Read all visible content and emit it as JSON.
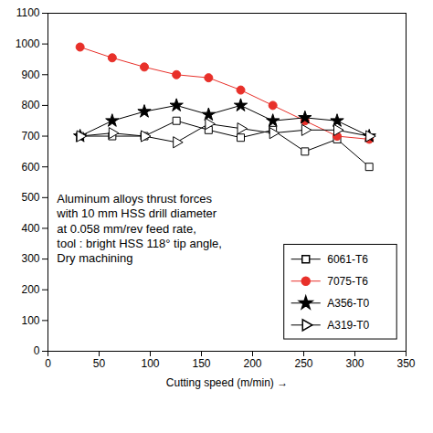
{
  "chart_data": {
    "type": "line",
    "x_label": "Cutting speed (m/min)",
    "annotation": "Aluminum alloys thrust forces\nwith 10 mm HSS drill diameter\nat 0.058 mm/rev feed rate,\ntool : bright HSS 118° tip angle,\nDry machining",
    "x": [
      31.4,
      62.8,
      94.2,
      125.6,
      157,
      188.4,
      219.8,
      251.2,
      282.6,
      314
    ],
    "series": [
      {
        "name": "6061-T6",
        "color": "#000000",
        "marker": "square-open",
        "values": [
          700,
          700,
          700,
          750,
          720,
          695,
          720,
          650,
          690,
          600
        ]
      },
      {
        "name": "7075-T6",
        "color": "#e8302a",
        "marker": "circle",
        "values": [
          990,
          955,
          925,
          900,
          890,
          850,
          800,
          750,
          700,
          690
        ]
      },
      {
        "name": "A356-T0",
        "color": "#000000",
        "marker": "star",
        "values": [
          700,
          750,
          780,
          800,
          770,
          800,
          750,
          760,
          750,
          700
        ]
      },
      {
        "name": "A319-T0",
        "color": "#000000",
        "marker": "triangle-open",
        "values": [
          700,
          710,
          700,
          680,
          740,
          725,
          710,
          720,
          720,
          700
        ]
      }
    ],
    "xlim": [
      0,
      350
    ],
    "xticks": [
      0,
      50,
      100,
      150,
      200,
      250,
      300,
      350
    ],
    "ylim": [
      0,
      1100
    ],
    "yticks": [
      0,
      100,
      200,
      300,
      400,
      500,
      600,
      700,
      800,
      900,
      1000,
      1100
    ],
    "legend": "lower right",
    "grid": false
  }
}
